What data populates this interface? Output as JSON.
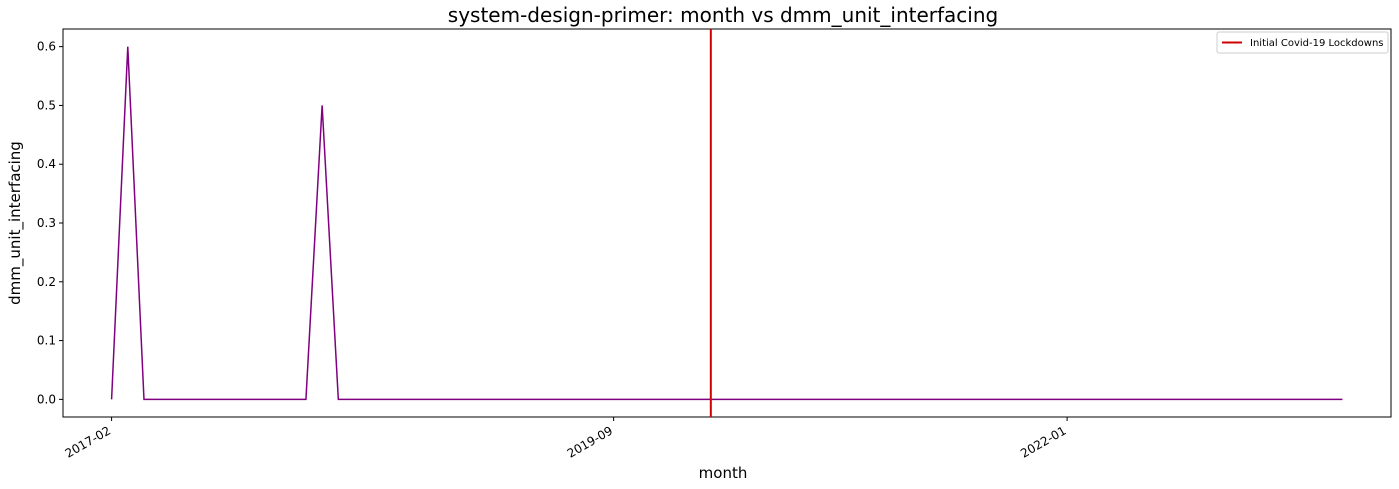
{
  "chart_data": {
    "type": "line",
    "title": "system-design-primer: month vs dmm_unit_interfacing",
    "xlabel": "month",
    "ylabel": "dmm_unit_interfacing",
    "x_ticks": [
      "2017-02",
      "2019-09",
      "2022-01"
    ],
    "y_ticks": [
      "0.0",
      "0.1",
      "0.2",
      "0.3",
      "0.4",
      "0.5",
      "0.6"
    ],
    "ylim": [
      -0.03,
      0.63
    ],
    "xlim": [
      "2016-11",
      "2023-09"
    ],
    "grid": false,
    "legend_position": "top-right",
    "series": [
      {
        "color": "#800080",
        "x": [
          "2017-02",
          "2017-03",
          "2017-04",
          "2017-05",
          "2017-06",
          "2017-07",
          "2017-08",
          "2017-09",
          "2017-10",
          "2017-11",
          "2017-12",
          "2018-01",
          "2018-02",
          "2018-03",
          "2018-04",
          "2018-05",
          "2018-06",
          "2018-07",
          "2018-08",
          "2018-09",
          "2018-10",
          "2018-11",
          "2018-12",
          "2019-01",
          "2019-02",
          "2019-03",
          "2019-04",
          "2019-05",
          "2019-06",
          "2019-07",
          "2019-08",
          "2019-09",
          "2019-10",
          "2019-11",
          "2019-12",
          "2020-01",
          "2020-02",
          "2020-03",
          "2020-04",
          "2020-05",
          "2020-06",
          "2020-07",
          "2020-08",
          "2020-09",
          "2020-10",
          "2020-11",
          "2020-12",
          "2021-01",
          "2021-02",
          "2021-03",
          "2021-04",
          "2021-05",
          "2021-06",
          "2021-07",
          "2021-08",
          "2021-09",
          "2021-10",
          "2021-11",
          "2021-12",
          "2022-01",
          "2022-02",
          "2022-03",
          "2022-04",
          "2022-05",
          "2022-06",
          "2022-07",
          "2022-08",
          "2022-09",
          "2022-10",
          "2022-11",
          "2022-12",
          "2023-01",
          "2023-02",
          "2023-03",
          "2023-04",
          "2023-05",
          "2023-06"
        ],
        "y": [
          0.0,
          0.6,
          0.0,
          0.0,
          0.0,
          0.0,
          0.0,
          0.0,
          0.0,
          0.0,
          0.0,
          0.0,
          0.0,
          0.5,
          0.0,
          0.0,
          0.0,
          0.0,
          0.0,
          0.0,
          0.0,
          0.0,
          0.0,
          0.0,
          0.0,
          0.0,
          0.0,
          0.0,
          0.0,
          0.0,
          0.0,
          0.0,
          0.0,
          0.0,
          0.0,
          0.0,
          0.0,
          0.0,
          0.0,
          0.0,
          0.0,
          0.0,
          0.0,
          0.0,
          0.0,
          0.0,
          0.0,
          0.0,
          0.0,
          0.0,
          0.0,
          0.0,
          0.0,
          0.0,
          0.0,
          0.0,
          0.0,
          0.0,
          0.0,
          0.0,
          0.0,
          0.0,
          0.0,
          0.0,
          0.0,
          0.0,
          0.0,
          0.0,
          0.0,
          0.0,
          0.0,
          0.0,
          0.0,
          0.0,
          0.0,
          0.0,
          0.0
        ]
      }
    ],
    "vlines": [
      {
        "name": "Initial Covid-19 Lockdowns",
        "x": "2020-03",
        "color": "#d00000"
      }
    ]
  }
}
